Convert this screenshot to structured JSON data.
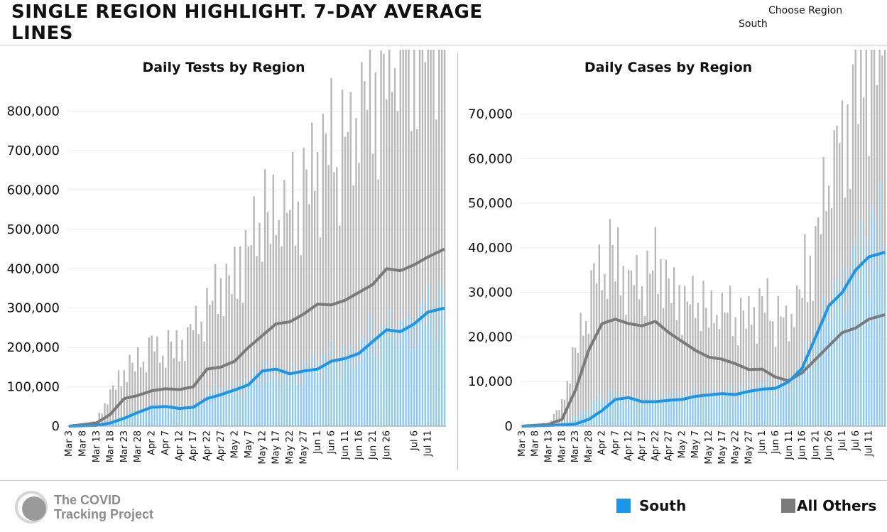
{
  "header": {
    "title": "SINGLE REGION HIGHLIGHT. 7-DAY AVERAGE LINES",
    "region_label": "Choose Region",
    "region_value": "South"
  },
  "colors": {
    "south": "#1a96e8",
    "south_bar": "#8cc8f4",
    "others": "#7a7a7a",
    "others_bar": "#b8b8b8"
  },
  "legend": [
    {
      "label": "South",
      "color": "#1a96e8"
    },
    {
      "label": "All Others",
      "color": "#7a7a7a"
    }
  ],
  "logo": {
    "line1": "The COVID",
    "line2": "Tracking Project"
  },
  "chart_data": [
    {
      "type": "bar",
      "title": "Daily Tests by Region",
      "x_start": "2020-03-03",
      "x_end": "2020-07-17",
      "x_tick_labels": [
        "Mar 3",
        "Mar 8",
        "Mar 13",
        "Mar 18",
        "Mar 23",
        "Mar 28",
        "Apr 2",
        "Apr 7",
        "Apr 12",
        "Apr 17",
        "Apr 22",
        "Apr 27",
        "May 2",
        "May 7",
        "May 12",
        "May 17",
        "May 22",
        "May 27",
        "Jun 1",
        "Jun 6",
        "Jun 11",
        "Jun 16",
        "Jun 21",
        "Jun 26",
        "Jul 6",
        "Jul 11"
      ],
      "x_tick_dates": [
        "2020-03-03",
        "2020-03-08",
        "2020-03-13",
        "2020-03-18",
        "2020-03-23",
        "2020-03-28",
        "2020-04-02",
        "2020-04-07",
        "2020-04-12",
        "2020-04-17",
        "2020-04-22",
        "2020-04-27",
        "2020-05-02",
        "2020-05-07",
        "2020-05-12",
        "2020-05-17",
        "2020-05-22",
        "2020-05-27",
        "2020-06-01",
        "2020-06-06",
        "2020-06-11",
        "2020-06-16",
        "2020-06-21",
        "2020-06-26",
        "2020-07-06",
        "2020-07-11"
      ],
      "y_ticks": [
        0,
        100000,
        200000,
        300000,
        400000,
        500000,
        600000,
        700000,
        800000
      ],
      "y_tick_labels": [
        "0",
        "100,000",
        "200,000",
        "300,000",
        "400,000",
        "500,000",
        "600,000",
        "700,000",
        "800,000"
      ],
      "ylim": [
        0,
        830000
      ],
      "series": [
        {
          "name": "South",
          "total_anchors": [
            [
              0,
              0
            ],
            [
              10,
              3000
            ],
            [
              15,
              10000
            ],
            [
              20,
              25000
            ],
            [
              25,
              40000
            ],
            [
              30,
              50000
            ],
            [
              35,
              48000
            ],
            [
              40,
              45000
            ],
            [
              45,
              50000
            ],
            [
              50,
              80000
            ],
            [
              55,
              90000
            ],
            [
              60,
              100000
            ],
            [
              65,
              115000
            ],
            [
              70,
              140000
            ],
            [
              75,
              140000
            ],
            [
              80,
              130000
            ],
            [
              85,
              145000
            ],
            [
              90,
              155000
            ],
            [
              95,
              170000
            ],
            [
              100,
              175000
            ],
            [
              105,
              195000
            ],
            [
              110,
              225000
            ],
            [
              115,
              250000
            ],
            [
              120,
              240000
            ],
            [
              125,
              260000
            ],
            [
              130,
              300000
            ],
            [
              136,
              310000
            ]
          ],
          "avg_anchors": [
            [
              0,
              0
            ],
            [
              10,
              2000
            ],
            [
              15,
              8000
            ],
            [
              20,
              20000
            ],
            [
              25,
              35000
            ],
            [
              30,
              48000
            ],
            [
              35,
              50000
            ],
            [
              40,
              45000
            ],
            [
              45,
              48000
            ],
            [
              50,
              70000
            ],
            [
              55,
              80000
            ],
            [
              60,
              92000
            ],
            [
              65,
              105000
            ],
            [
              70,
              140000
            ],
            [
              75,
              145000
            ],
            [
              80,
              133000
            ],
            [
              85,
              140000
            ],
            [
              90,
              145000
            ],
            [
              95,
              165000
            ],
            [
              100,
              172000
            ],
            [
              105,
              185000
            ],
            [
              110,
              215000
            ],
            [
              115,
              245000
            ],
            [
              120,
              240000
            ],
            [
              125,
              260000
            ],
            [
              130,
              290000
            ],
            [
              136,
              300000
            ]
          ]
        },
        {
          "name": "All Others",
          "total_anchors": [
            [
              0,
              0
            ],
            [
              10,
              10000
            ],
            [
              15,
              70000
            ],
            [
              20,
              110000
            ],
            [
              25,
              130000
            ],
            [
              30,
              150000
            ],
            [
              35,
              140000
            ],
            [
              40,
              145000
            ],
            [
              45,
              200000
            ],
            [
              50,
              230000
            ],
            [
              55,
              260000
            ],
            [
              60,
              300000
            ],
            [
              65,
              360000
            ],
            [
              70,
              410000
            ],
            [
              75,
              420000
            ],
            [
              80,
              440000
            ],
            [
              85,
              470000
            ],
            [
              90,
              500000
            ],
            [
              95,
              520000
            ],
            [
              100,
              560000
            ],
            [
              105,
              600000
            ],
            [
              110,
              640000
            ],
            [
              115,
              660000
            ],
            [
              120,
              700000
            ],
            [
              125,
              730000
            ],
            [
              130,
              770000
            ],
            [
              136,
              830000
            ]
          ],
          "avg_anchors": [
            [
              0,
              0
            ],
            [
              10,
              8000
            ],
            [
              15,
              30000
            ],
            [
              20,
              70000
            ],
            [
              25,
              78000
            ],
            [
              30,
              90000
            ],
            [
              35,
              95000
            ],
            [
              40,
              93000
            ],
            [
              45,
              100000
            ],
            [
              50,
              145000
            ],
            [
              55,
              150000
            ],
            [
              60,
              165000
            ],
            [
              65,
              200000
            ],
            [
              70,
              230000
            ],
            [
              75,
              260000
            ],
            [
              80,
              265000
            ],
            [
              85,
              285000
            ],
            [
              90,
              310000
            ],
            [
              95,
              308000
            ],
            [
              100,
              320000
            ],
            [
              105,
              340000
            ],
            [
              110,
              360000
            ],
            [
              115,
              400000
            ],
            [
              120,
              395000
            ],
            [
              125,
              410000
            ],
            [
              130,
              430000
            ],
            [
              136,
              450000
            ]
          ]
        }
      ]
    },
    {
      "type": "bar",
      "title": "Daily Cases by Region",
      "x_start": "2020-03-03",
      "x_end": "2020-07-17",
      "x_tick_labels": [
        "Mar 3",
        "Mar 8",
        "Mar 13",
        "Mar 18",
        "Mar 23",
        "Mar 28",
        "Apr 2",
        "Apr 7",
        "Apr 12",
        "Apr 17",
        "Apr 22",
        "Apr 27",
        "May 2",
        "May 7",
        "May 12",
        "May 17",
        "May 22",
        "May 27",
        "Jun 1",
        "Jun 6",
        "Jun 11",
        "Jun 16",
        "Jun 21",
        "Jun 26",
        "Jul 1",
        "Jul 6",
        "Jul 11"
      ],
      "x_tick_dates": [
        "2020-03-03",
        "2020-03-08",
        "2020-03-13",
        "2020-03-18",
        "2020-03-23",
        "2020-03-28",
        "2020-04-02",
        "2020-04-07",
        "2020-04-12",
        "2020-04-17",
        "2020-04-22",
        "2020-04-27",
        "2020-05-02",
        "2020-05-07",
        "2020-05-12",
        "2020-05-17",
        "2020-05-22",
        "2020-05-27",
        "2020-06-01",
        "2020-06-06",
        "2020-06-11",
        "2020-06-16",
        "2020-06-21",
        "2020-06-26",
        "2020-07-01",
        "2020-07-06",
        "2020-07-11"
      ],
      "y_ticks": [
        0,
        10000,
        20000,
        30000,
        40000,
        50000,
        60000,
        70000
      ],
      "y_tick_labels": [
        "0",
        "10,000",
        "20,000",
        "30,000",
        "40,000",
        "50,000",
        "60,000",
        "70,000"
      ],
      "ylim": [
        0,
        72000
      ],
      "series": [
        {
          "name": "South",
          "total_anchors": [
            [
              0,
              0
            ],
            [
              10,
              200
            ],
            [
              15,
              800
            ],
            [
              20,
              2000
            ],
            [
              25,
              4500
            ],
            [
              30,
              6500
            ],
            [
              35,
              6500
            ],
            [
              40,
              5500
            ],
            [
              45,
              5800
            ],
            [
              50,
              6200
            ],
            [
              55,
              6800
            ],
            [
              60,
              7000
            ],
            [
              65,
              7200
            ],
            [
              70,
              7500
            ],
            [
              75,
              7500
            ],
            [
              80,
              7600
            ],
            [
              85,
              8200
            ],
            [
              90,
              8500
            ],
            [
              95,
              9000
            ],
            [
              100,
              10000
            ],
            [
              105,
              13000
            ],
            [
              110,
              20000
            ],
            [
              115,
              27000
            ],
            [
              120,
              32000
            ],
            [
              125,
              37000
            ],
            [
              130,
              41000
            ],
            [
              136,
              43000
            ]
          ],
          "avg_anchors": [
            [
              0,
              0
            ],
            [
              10,
              150
            ],
            [
              15,
              300
            ],
            [
              20,
              500
            ],
            [
              25,
              1500
            ],
            [
              30,
              3500
            ],
            [
              35,
              6000
            ],
            [
              40,
              6400
            ],
            [
              45,
              5500
            ],
            [
              50,
              5500
            ],
            [
              55,
              5800
            ],
            [
              60,
              6000
            ],
            [
              65,
              6700
            ],
            [
              70,
              7000
            ],
            [
              75,
              7300
            ],
            [
              80,
              7100
            ],
            [
              85,
              7800
            ],
            [
              90,
              8300
            ],
            [
              95,
              8500
            ],
            [
              100,
              10000
            ],
            [
              105,
              13000
            ],
            [
              110,
              20000
            ],
            [
              115,
              27000
            ],
            [
              120,
              30000
            ],
            [
              125,
              35000
            ],
            [
              130,
              38000
            ],
            [
              136,
              39000
            ]
          ]
        },
        {
          "name": "All Others",
          "total_anchors": [
            [
              0,
              0
            ],
            [
              10,
              500
            ],
            [
              15,
              4000
            ],
            [
              20,
              15000
            ],
            [
              25,
              24000
            ],
            [
              30,
              30000
            ],
            [
              35,
              29000
            ],
            [
              40,
              26000
            ],
            [
              45,
              28000
            ],
            [
              50,
              30000
            ],
            [
              55,
              26000
            ],
            [
              60,
              22000
            ],
            [
              65,
              22000
            ],
            [
              70,
              19000
            ],
            [
              75,
              19500
            ],
            [
              80,
              18000
            ],
            [
              85,
              16000
            ],
            [
              90,
              18000
            ],
            [
              95,
              16000
            ],
            [
              100,
              14000
            ],
            [
              105,
              17000
            ],
            [
              110,
              22000
            ],
            [
              115,
              28000
            ],
            [
              120,
              33000
            ],
            [
              125,
              38000
            ],
            [
              130,
              45000
            ],
            [
              136,
              50000
            ]
          ],
          "avg_anchors": [
            [
              0,
              0
            ],
            [
              10,
              400
            ],
            [
              15,
              1500
            ],
            [
              20,
              8000
            ],
            [
              25,
              17000
            ],
            [
              30,
              23000
            ],
            [
              35,
              24000
            ],
            [
              40,
              23000
            ],
            [
              45,
              22500
            ],
            [
              50,
              23500
            ],
            [
              55,
              21000
            ],
            [
              60,
              19000
            ],
            [
              65,
              17000
            ],
            [
              70,
              15500
            ],
            [
              75,
              15000
            ],
            [
              80,
              14000
            ],
            [
              85,
              12700
            ],
            [
              90,
              12800
            ],
            [
              95,
              11000
            ],
            [
              100,
              10200
            ],
            [
              105,
              12000
            ],
            [
              110,
              15000
            ],
            [
              115,
              18000
            ],
            [
              120,
              21000
            ],
            [
              125,
              22000
            ],
            [
              130,
              24000
            ],
            [
              136,
              25000
            ]
          ]
        }
      ]
    }
  ]
}
